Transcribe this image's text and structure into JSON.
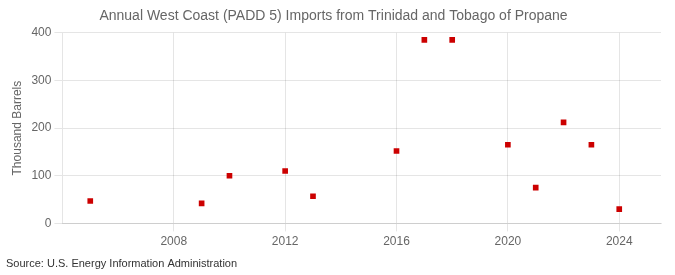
{
  "chart_data": {
    "type": "scatter",
    "title": "Annual West Coast (PADD 5) Imports from Trinidad and Tobago of Propane",
    "ylabel": "Thousand Barrels",
    "source": "Source: U.S. Energy Information Administration",
    "x": [
      2005,
      2009,
      2010,
      2012,
      2013,
      2016,
      2017,
      2018,
      2020,
      2021,
      2022,
      2023,
      2024
    ],
    "values": [
      47,
      42,
      100,
      110,
      57,
      152,
      385,
      385,
      165,
      75,
      212,
      165,
      30
    ],
    "color": "#cc0000",
    "marker": "square",
    "xlim": [
      2004,
      2025.5
    ],
    "ylim": [
      0,
      400
    ],
    "xticks": [
      2008,
      2012,
      2016,
      2020,
      2024
    ],
    "yticks": [
      0,
      100,
      200,
      300,
      400
    ],
    "grid": true
  }
}
